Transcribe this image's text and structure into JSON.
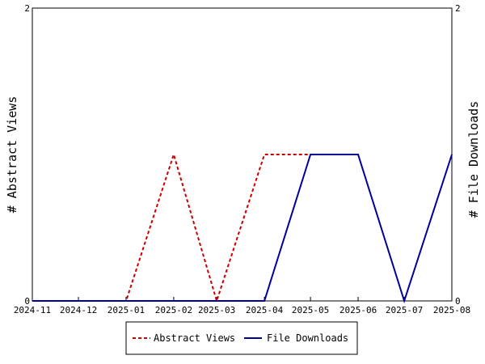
{
  "chart_data": {
    "type": "line",
    "categories": [
      "2024-11",
      "2024-12",
      "2025-01",
      "2025-02",
      "2025-03",
      "2025-04",
      "2025-05",
      "2025-06",
      "2025-07",
      "2025-08"
    ],
    "x": [
      "2024-11-01",
      "2024-12-01",
      "2025-01-01",
      "2025-02-01",
      "2025-03-01",
      "2025-04-01",
      "2025-05-01",
      "2025-06-01",
      "2025-07-01",
      "2025-08-01"
    ],
    "series": [
      {
        "name": "Abstract Views",
        "axis": "left",
        "style": "dashed",
        "color": "#cc0000",
        "points": [
          {
            "x": "2024-11-01",
            "y": 0
          },
          {
            "x": "2024-12-01",
            "y": 0
          },
          {
            "x": "2025-01-01",
            "y": 0
          },
          {
            "x": "2025-02-01",
            "y": 1
          },
          {
            "x": "2025-03-01",
            "y": 0
          },
          {
            "x": "2025-04-01",
            "y": 1
          },
          {
            "x": "2025-05-01",
            "y": 1
          }
        ]
      },
      {
        "name": "File Downloads",
        "axis": "right",
        "style": "solid",
        "color": "#000099",
        "points": [
          {
            "x": "2024-11-01",
            "y": 0
          },
          {
            "x": "2024-12-01",
            "y": 0
          },
          {
            "x": "2025-01-01",
            "y": 0
          },
          {
            "x": "2025-02-01",
            "y": 0
          },
          {
            "x": "2025-03-01",
            "y": 0
          },
          {
            "x": "2025-04-01",
            "y": 0
          },
          {
            "x": "2025-05-01",
            "y": 1
          },
          {
            "x": "2025-06-01",
            "y": 1
          },
          {
            "x": "2025-07-01",
            "y": 0
          },
          {
            "x": "2025-08-01",
            "y": 1
          }
        ]
      }
    ],
    "xlim": [
      "2024-11-01",
      "2025-08-01"
    ],
    "ylim": [
      0,
      2
    ],
    "y2lim": [
      0,
      2
    ],
    "yticks": [
      "0",
      "2"
    ],
    "y2ticks": [
      "0",
      "2"
    ],
    "ylabel": "# Abstract Views",
    "y2label": "# File Downloads",
    "xlabel": "",
    "title": "",
    "grid": false,
    "legend_position": "bottom-center"
  }
}
